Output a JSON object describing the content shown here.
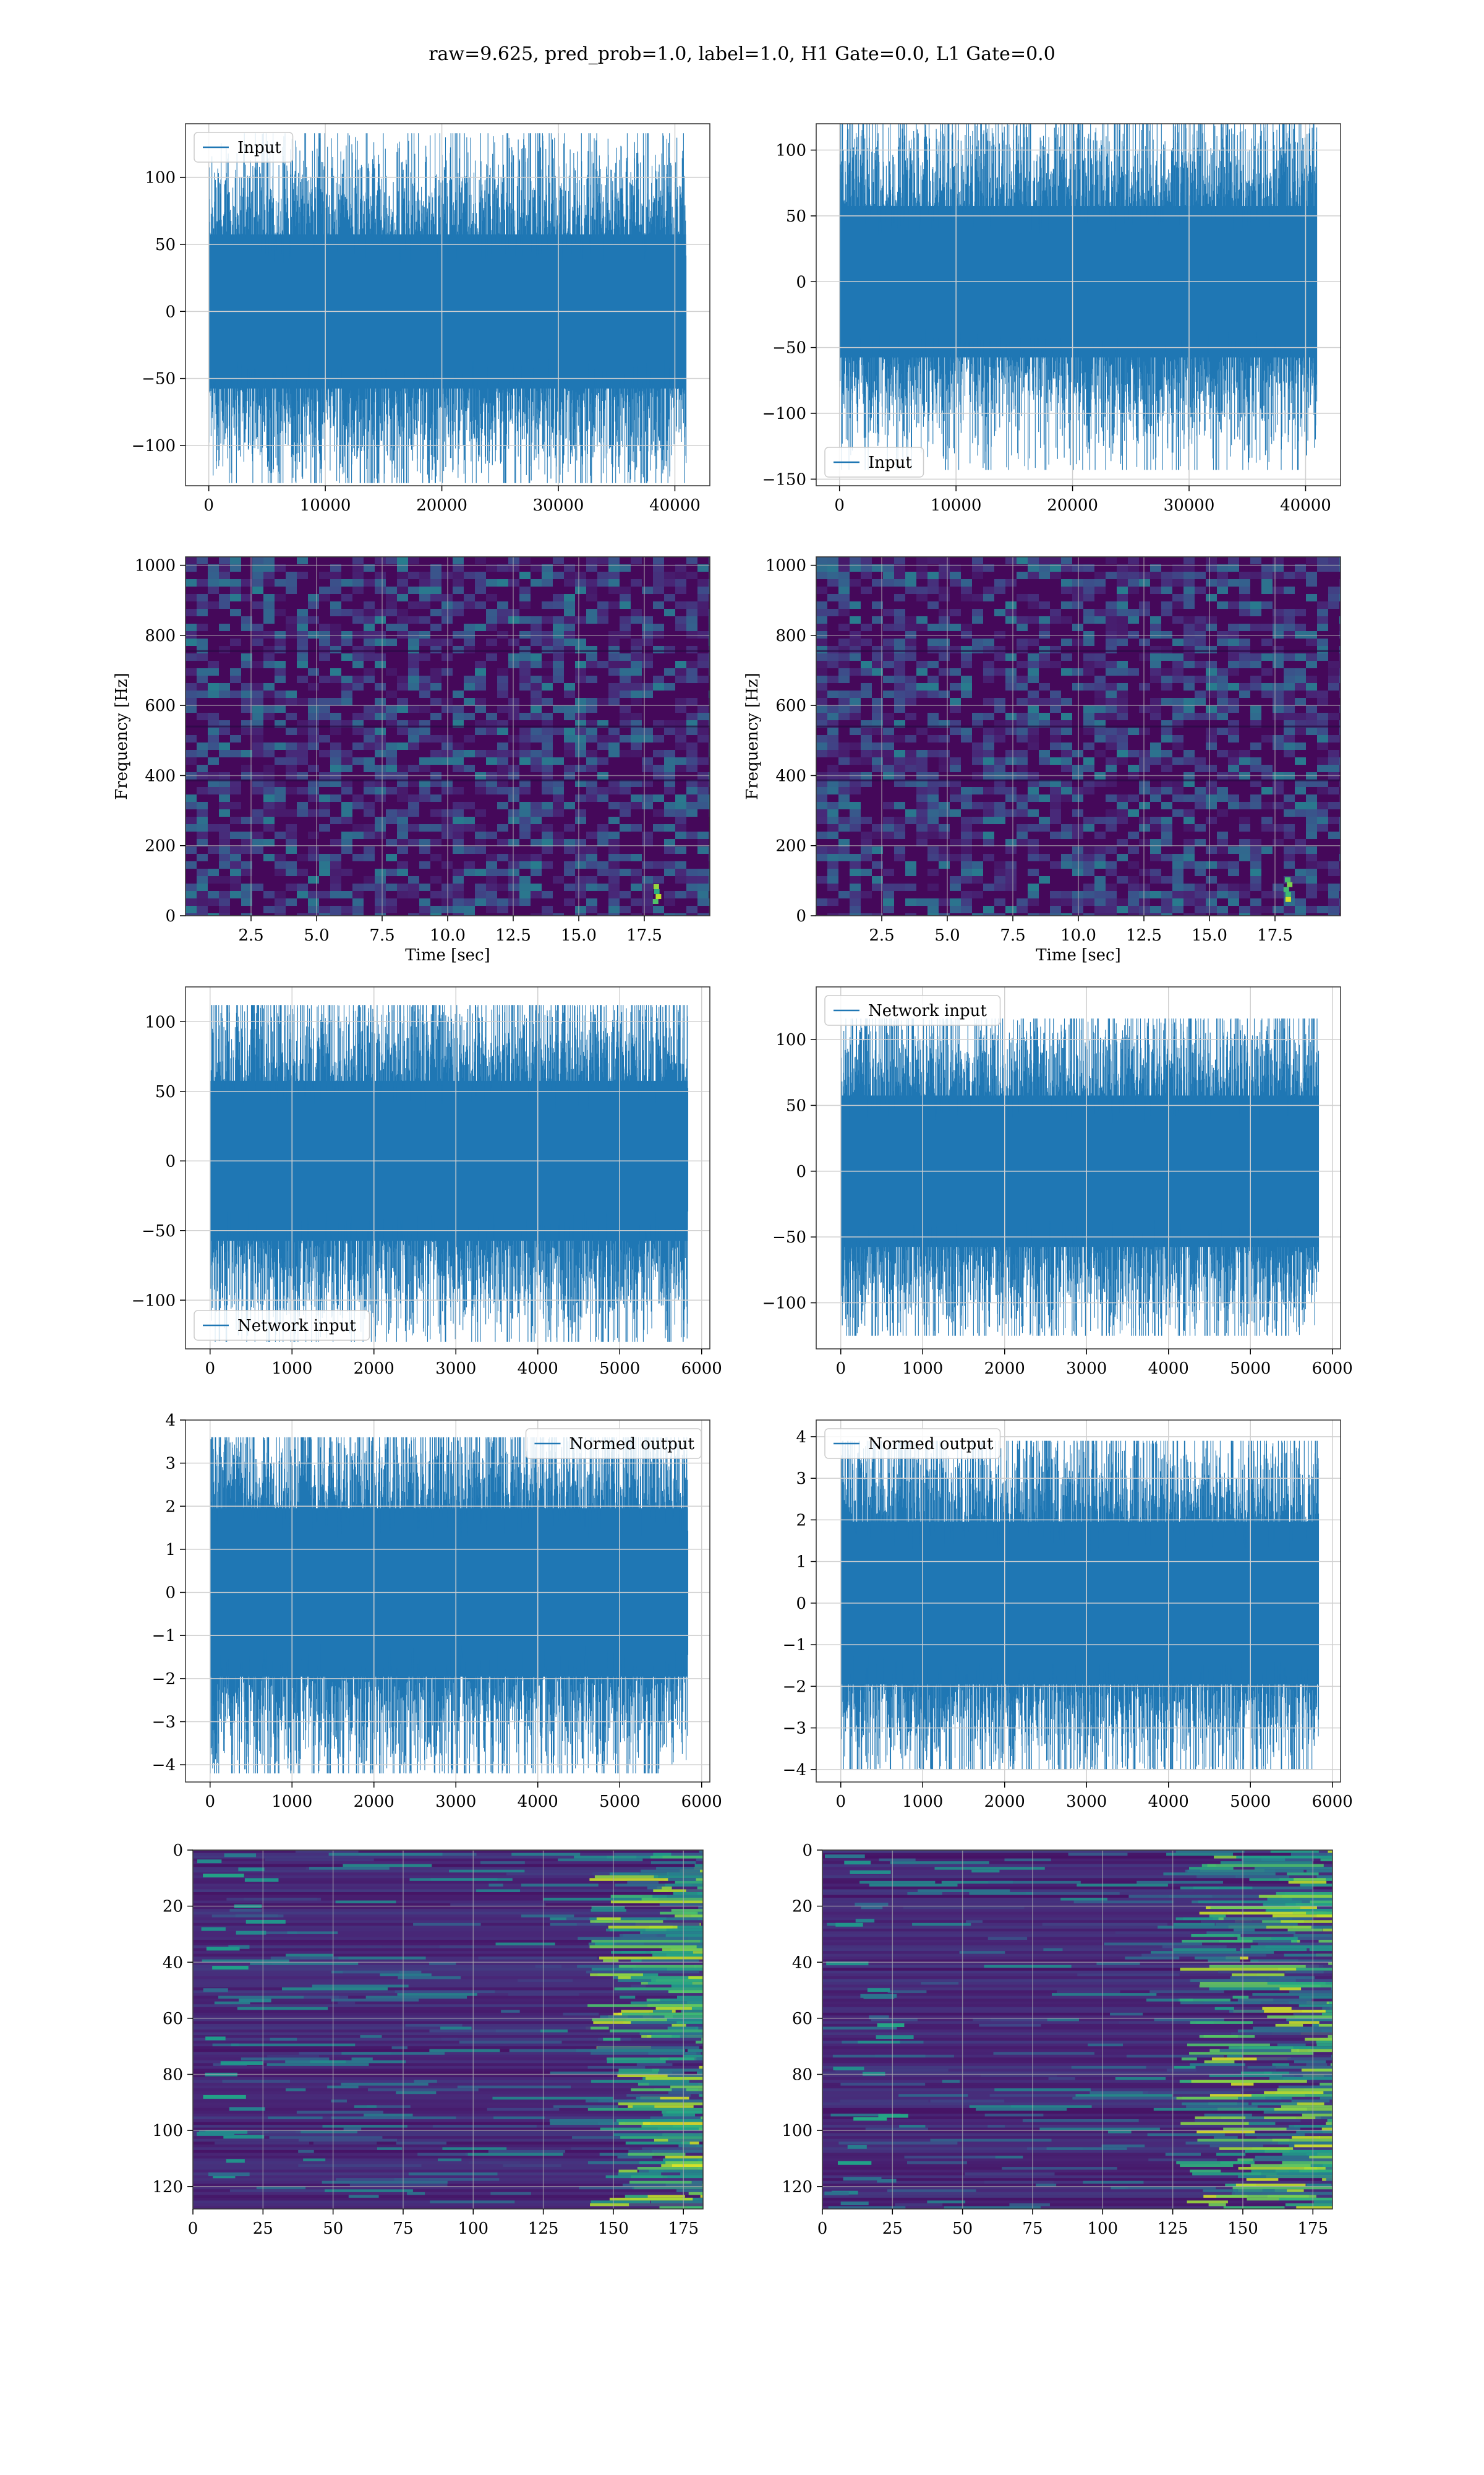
{
  "figure": {
    "suptitle": "raw=9.625, pred_prob=1.0, label=1.0, H1 Gate=0.0, L1 Gate=0.0"
  },
  "colors": {
    "series": "#1f77b4",
    "grid": "#d0d0d0",
    "viridis_low": "#440154",
    "viridis_mid": "#21918c",
    "viridis_high": "#fde725"
  },
  "chart_data": [
    {
      "id": "h1-input",
      "type": "line",
      "xlim": [
        -2000,
        43000
      ],
      "ylim": [
        -130,
        140
      ],
      "xticks": [
        0,
        10000,
        20000,
        30000,
        40000
      ],
      "yticks": [
        -100,
        -50,
        0,
        50,
        100
      ],
      "grid": true,
      "legend_placement": "upper left",
      "series": [
        {
          "name": "Input",
          "n": 40960,
          "std": 25,
          "mean": 0,
          "max": 133,
          "min": -128
        }
      ]
    },
    {
      "id": "l1-input",
      "type": "line",
      "xlim": [
        -2000,
        43000
      ],
      "ylim": [
        -155,
        120
      ],
      "xticks": [
        0,
        10000,
        20000,
        30000,
        40000
      ],
      "yticks": [
        -150,
        -100,
        -50,
        0,
        50,
        100
      ],
      "grid": true,
      "legend_placement": "lower left",
      "series": [
        {
          "name": "Input",
          "n": 40960,
          "std": 25,
          "mean": 0,
          "max": 128,
          "min": -143
        }
      ]
    },
    {
      "id": "h1-spectrogram",
      "type": "heatmap",
      "xlabel": "Time [sec]",
      "ylabel": "Frequency [Hz]",
      "xlim": [
        0,
        20
      ],
      "ylim": [
        0,
        1024
      ],
      "xticks": [
        2.5,
        5.0,
        7.5,
        10.0,
        12.5,
        15.0,
        17.5
      ],
      "yticks": [
        0,
        200,
        400,
        600,
        800,
        1000
      ],
      "grid": true,
      "colormap": "viridis",
      "features": [
        {
          "time": 18,
          "freq_range": [
            40,
            90
          ],
          "intensity": 1.0
        }
      ]
    },
    {
      "id": "l1-spectrogram",
      "type": "heatmap",
      "xlabel": "Time [sec]",
      "ylabel": "Frequency [Hz]",
      "xlim": [
        0,
        20
      ],
      "ylim": [
        0,
        1024
      ],
      "xticks": [
        2.5,
        5.0,
        7.5,
        10.0,
        12.5,
        15.0,
        17.5
      ],
      "yticks": [
        0,
        200,
        400,
        600,
        800,
        1000
      ],
      "grid": true,
      "colormap": "viridis",
      "features": [
        {
          "time": 18,
          "freq_range": [
            40,
            110
          ],
          "intensity": 1.0
        }
      ]
    },
    {
      "id": "h1-network-input",
      "type": "line",
      "xlim": [
        -300,
        6100
      ],
      "ylim": [
        -135,
        125
      ],
      "xticks": [
        0,
        1000,
        2000,
        3000,
        4000,
        5000,
        6000
      ],
      "yticks": [
        -100,
        -50,
        0,
        50,
        100
      ],
      "grid": true,
      "legend_placement": "lower left",
      "series": [
        {
          "name": "Network input",
          "n": 5832,
          "std": 25,
          "mean": 0,
          "max": 112,
          "min": -130
        }
      ]
    },
    {
      "id": "l1-network-input",
      "type": "line",
      "xlim": [
        -300,
        6100
      ],
      "ylim": [
        -135,
        140
      ],
      "xticks": [
        0,
        1000,
        2000,
        3000,
        4000,
        5000,
        6000
      ],
      "yticks": [
        -100,
        -50,
        0,
        50,
        100
      ],
      "grid": true,
      "legend_placement": "upper left",
      "series": [
        {
          "name": "Network input",
          "n": 5832,
          "std": 25,
          "mean": 0,
          "max": 116,
          "min": -125
        }
      ]
    },
    {
      "id": "h1-normed-output",
      "type": "line",
      "xlim": [
        -300,
        6100
      ],
      "ylim": [
        -4.4,
        4.0
      ],
      "xticks": [
        0,
        1000,
        2000,
        3000,
        4000,
        5000,
        6000
      ],
      "yticks": [
        -4,
        -3,
        -2,
        -1,
        0,
        1,
        2,
        3,
        4
      ],
      "grid": true,
      "legend_placement": "upper right",
      "series": [
        {
          "name": "Normed output",
          "n": 5832,
          "std": 0.85,
          "mean": 0,
          "max": 3.6,
          "min": -4.2
        }
      ]
    },
    {
      "id": "l1-normed-output",
      "type": "line",
      "xlim": [
        -300,
        6100
      ],
      "ylim": [
        -4.3,
        4.4
      ],
      "xticks": [
        0,
        1000,
        2000,
        3000,
        4000,
        5000,
        6000
      ],
      "yticks": [
        -4,
        -3,
        -2,
        -1,
        0,
        1,
        2,
        3,
        4
      ],
      "grid": true,
      "legend_placement": "upper left",
      "series": [
        {
          "name": "Normed output",
          "n": 5832,
          "std": 0.85,
          "mean": 0,
          "max": 3.9,
          "min": -4.0
        }
      ]
    },
    {
      "id": "h1-features",
      "type": "heatmap",
      "xlim": [
        0,
        182
      ],
      "ylim": [
        128,
        0
      ],
      "xticks": [
        0,
        25,
        50,
        75,
        100,
        125,
        150,
        175
      ],
      "yticks": [
        0,
        20,
        40,
        60,
        80,
        100,
        120
      ],
      "grid": true,
      "colormap": "viridis",
      "bright_region_start": 140
    },
    {
      "id": "l1-features",
      "type": "heatmap",
      "xlim": [
        0,
        182
      ],
      "ylim": [
        128,
        0
      ],
      "xticks": [
        0,
        25,
        50,
        75,
        100,
        125,
        150,
        175
      ],
      "yticks": [
        0,
        20,
        40,
        60,
        80,
        100,
        120
      ],
      "grid": true,
      "colormap": "viridis",
      "bright_region_start": 125
    }
  ]
}
